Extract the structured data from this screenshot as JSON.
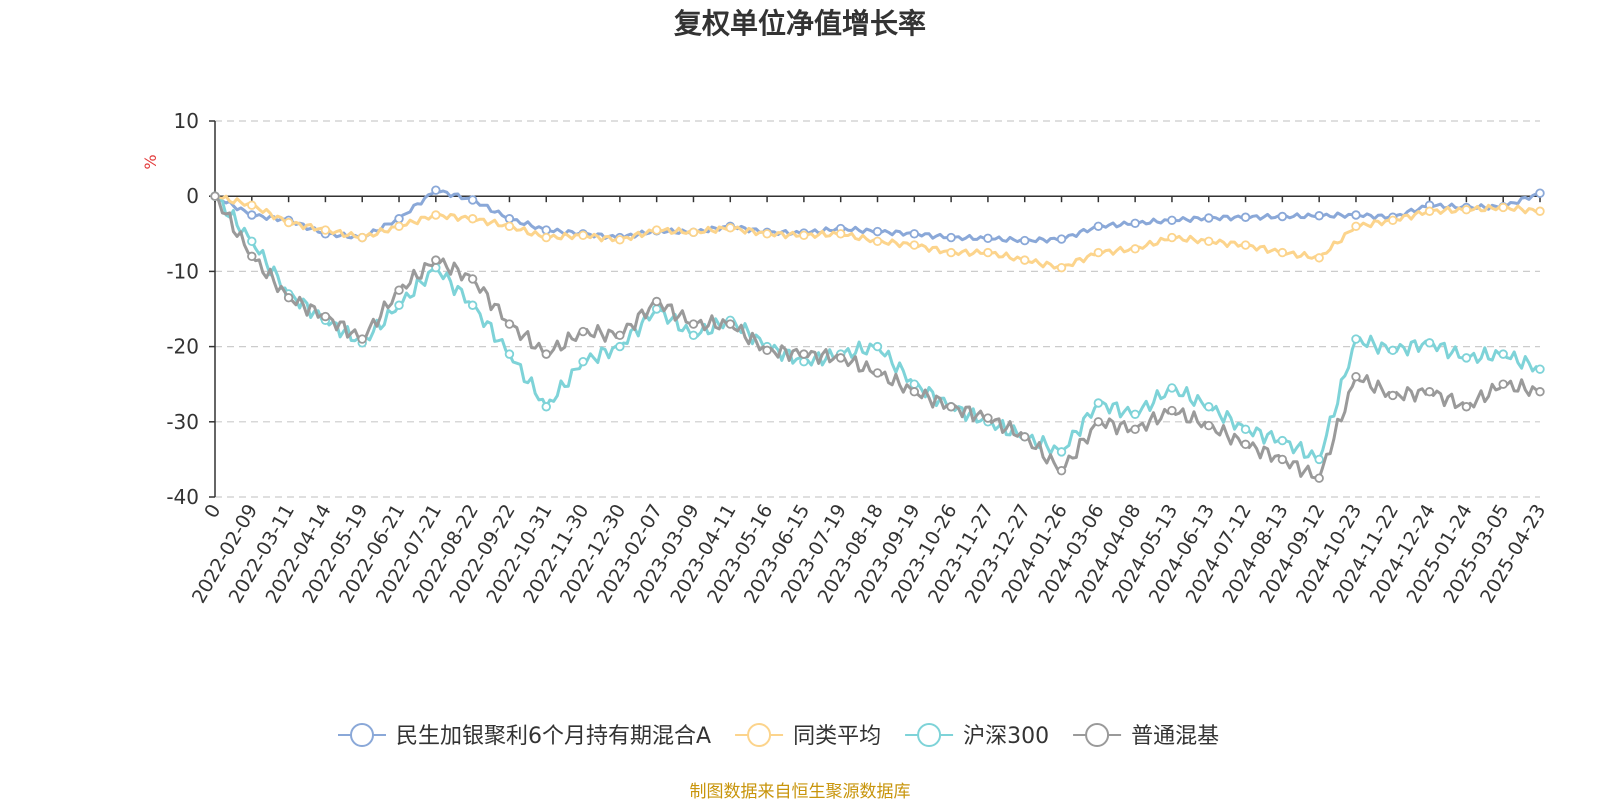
{
  "chart_data": {
    "type": "line",
    "title": "复权单位净值增长率",
    "ylabel": "%",
    "ylim": [
      -40,
      10
    ],
    "yticks": [
      10,
      0,
      -10,
      -20,
      -30,
      -40
    ],
    "grid": true,
    "legend_position": "bottom",
    "source_note": "制图数据来自恒生聚源数据库",
    "x": [
      "0",
      "2022-02-09",
      "2022-03-11",
      "2022-04-14",
      "2022-05-19",
      "2022-06-21",
      "2022-07-21",
      "2022-08-22",
      "2022-09-22",
      "2022-10-31",
      "2022-11-30",
      "2022-12-30",
      "2023-02-07",
      "2023-03-09",
      "2023-04-11",
      "2023-05-16",
      "2023-06-15",
      "2023-07-19",
      "2023-08-18",
      "2023-09-19",
      "2023-10-26",
      "2023-11-27",
      "2023-12-27",
      "2024-01-26",
      "2024-03-06",
      "2024-04-08",
      "2024-05-13",
      "2024-06-13",
      "2024-07-12",
      "2024-08-13",
      "2024-09-12",
      "2024-10-23",
      "2024-11-22",
      "2024-12-24",
      "2025-01-24",
      "2025-03-05",
      "2025-04-23"
    ],
    "series": [
      {
        "name": "民生加银聚利6个月持有期混合A",
        "color": "#8aa8d8",
        "values": [
          0,
          -2.5,
          -3.2,
          -5.0,
          -5.5,
          -3.0,
          0.8,
          -0.5,
          -3.0,
          -4.5,
          -5.0,
          -5.5,
          -4.6,
          -4.8,
          -4.0,
          -4.8,
          -4.9,
          -4.3,
          -4.7,
          -5.0,
          -5.5,
          -5.6,
          -5.9,
          -5.7,
          -4.0,
          -3.6,
          -3.2,
          -2.9,
          -2.8,
          -2.7,
          -2.6,
          -2.5,
          -2.8,
          -1.2,
          -1.5,
          -1.4,
          0.4
        ]
      },
      {
        "name": "同类平均",
        "color": "#fcd48c",
        "values": [
          0,
          -1.2,
          -3.5,
          -4.5,
          -5.5,
          -4.0,
          -2.5,
          -3.0,
          -4.0,
          -5.5,
          -5.2,
          -5.8,
          -4.5,
          -4.8,
          -4.2,
          -5.0,
          -5.2,
          -5.0,
          -6.0,
          -6.5,
          -7.5,
          -7.5,
          -8.5,
          -9.5,
          -7.5,
          -7.0,
          -5.5,
          -6.0,
          -6.5,
          -7.5,
          -8.2,
          -4.0,
          -3.2,
          -2.0,
          -1.8,
          -1.5,
          -2.0
        ]
      },
      {
        "name": "沪深300",
        "color": "#7ed3d8",
        "values": [
          0,
          -6.0,
          -13.0,
          -16.5,
          -19.5,
          -14.5,
          -9.5,
          -14.5,
          -21.0,
          -28.0,
          -22.0,
          -20.0,
          -15.0,
          -18.5,
          -16.5,
          -20.0,
          -22.0,
          -21.0,
          -20.0,
          -25.0,
          -28.0,
          -30.0,
          -32.0,
          -34.0,
          -27.5,
          -29.0,
          -25.5,
          -28.0,
          -31.0,
          -32.5,
          -35.0,
          -19.0,
          -20.5,
          -19.5,
          -21.5,
          -21.0,
          -23.0
        ]
      },
      {
        "name": "普通混基",
        "color": "#9a9a9a",
        "values": [
          0,
          -8.0,
          -13.5,
          -16.0,
          -19.0,
          -12.5,
          -8.5,
          -11.0,
          -17.0,
          -21.0,
          -18.0,
          -18.5,
          -14.0,
          -17.0,
          -17.0,
          -20.5,
          -21.0,
          -21.5,
          -23.5,
          -26.0,
          -28.0,
          -29.5,
          -32.0,
          -36.5,
          -30.0,
          -31.0,
          -28.5,
          -30.5,
          -33.0,
          -35.0,
          -37.5,
          -24.0,
          -26.5,
          -26.0,
          -28.0,
          -25.0,
          -26.0
        ]
      }
    ]
  }
}
